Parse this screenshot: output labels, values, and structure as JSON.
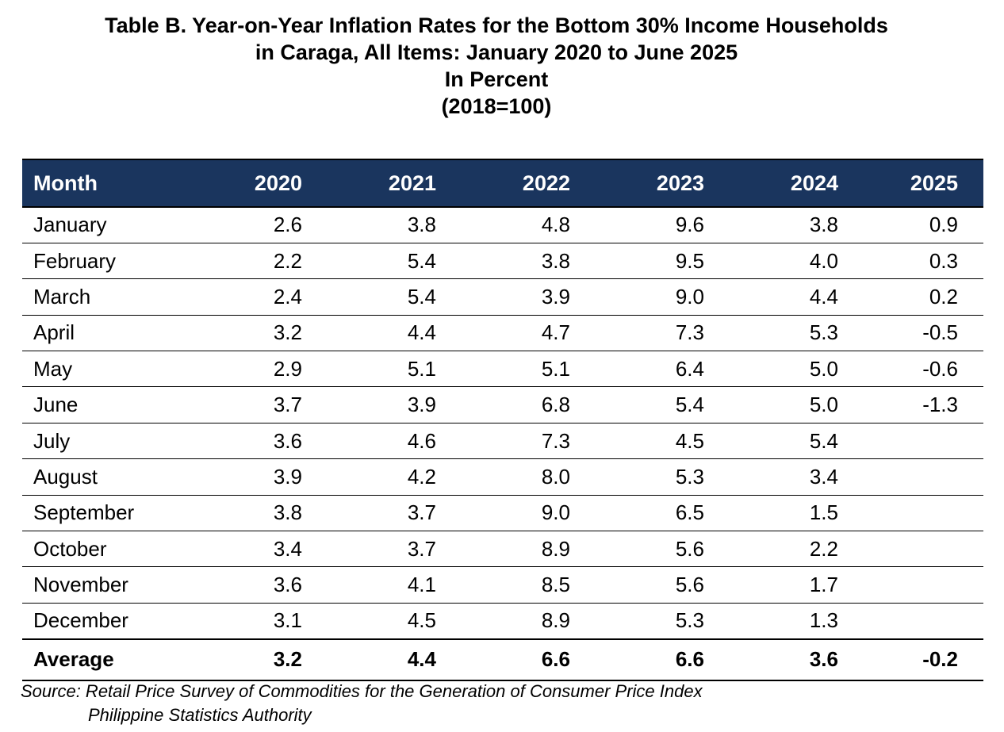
{
  "title": {
    "line1": "Table B. Year-on-Year Inflation Rates for the Bottom 30% Income Households",
    "line2": "in Caraga, All Items: January 2020 to June 2025",
    "line3": "In Percent",
    "line4": "(2018=100)"
  },
  "table": {
    "headers": [
      "Month",
      "2020",
      "2021",
      "2022",
      "2023",
      "2024",
      "2025"
    ],
    "rows": [
      [
        "January",
        "2.6",
        "3.8",
        "4.8",
        "9.6",
        "3.8",
        "0.9"
      ],
      [
        "February",
        "2.2",
        "5.4",
        "3.8",
        "9.5",
        "4.0",
        "0.3"
      ],
      [
        "March",
        "2.4",
        "5.4",
        "3.9",
        "9.0",
        "4.4",
        "0.2"
      ],
      [
        "April",
        "3.2",
        "4.4",
        "4.7",
        "7.3",
        "5.3",
        "-0.5"
      ],
      [
        "May",
        "2.9",
        "5.1",
        "5.1",
        "6.4",
        "5.0",
        "-0.6"
      ],
      [
        "June",
        "3.7",
        "3.9",
        "6.8",
        "5.4",
        "5.0",
        "-1.3"
      ],
      [
        "July",
        "3.6",
        "4.6",
        "7.3",
        "4.5",
        "5.4",
        ""
      ],
      [
        "August",
        "3.9",
        "4.2",
        "8.0",
        "5.3",
        "3.4",
        ""
      ],
      [
        "September",
        "3.8",
        "3.7",
        "9.0",
        "6.5",
        "1.5",
        ""
      ],
      [
        "October",
        "3.4",
        "3.7",
        "8.9",
        "5.6",
        "2.2",
        ""
      ],
      [
        "November",
        "3.6",
        "4.1",
        "8.5",
        "5.6",
        "1.7",
        ""
      ],
      [
        "December",
        "3.1",
        "4.5",
        "8.9",
        "5.3",
        "1.3",
        ""
      ]
    ],
    "average": [
      "Average",
      "3.2",
      "4.4",
      "6.6",
      "6.6",
      "3.6",
      "-0.2"
    ]
  },
  "source": {
    "line1": "Source: Retail Price Survey of Commodities for the Generation of Consumer Price Index",
    "line2": "Philippine Statistics Authority"
  },
  "colors": {
    "header_background": "#1a355e",
    "header_text": "#ffffff",
    "border": "#000000"
  }
}
